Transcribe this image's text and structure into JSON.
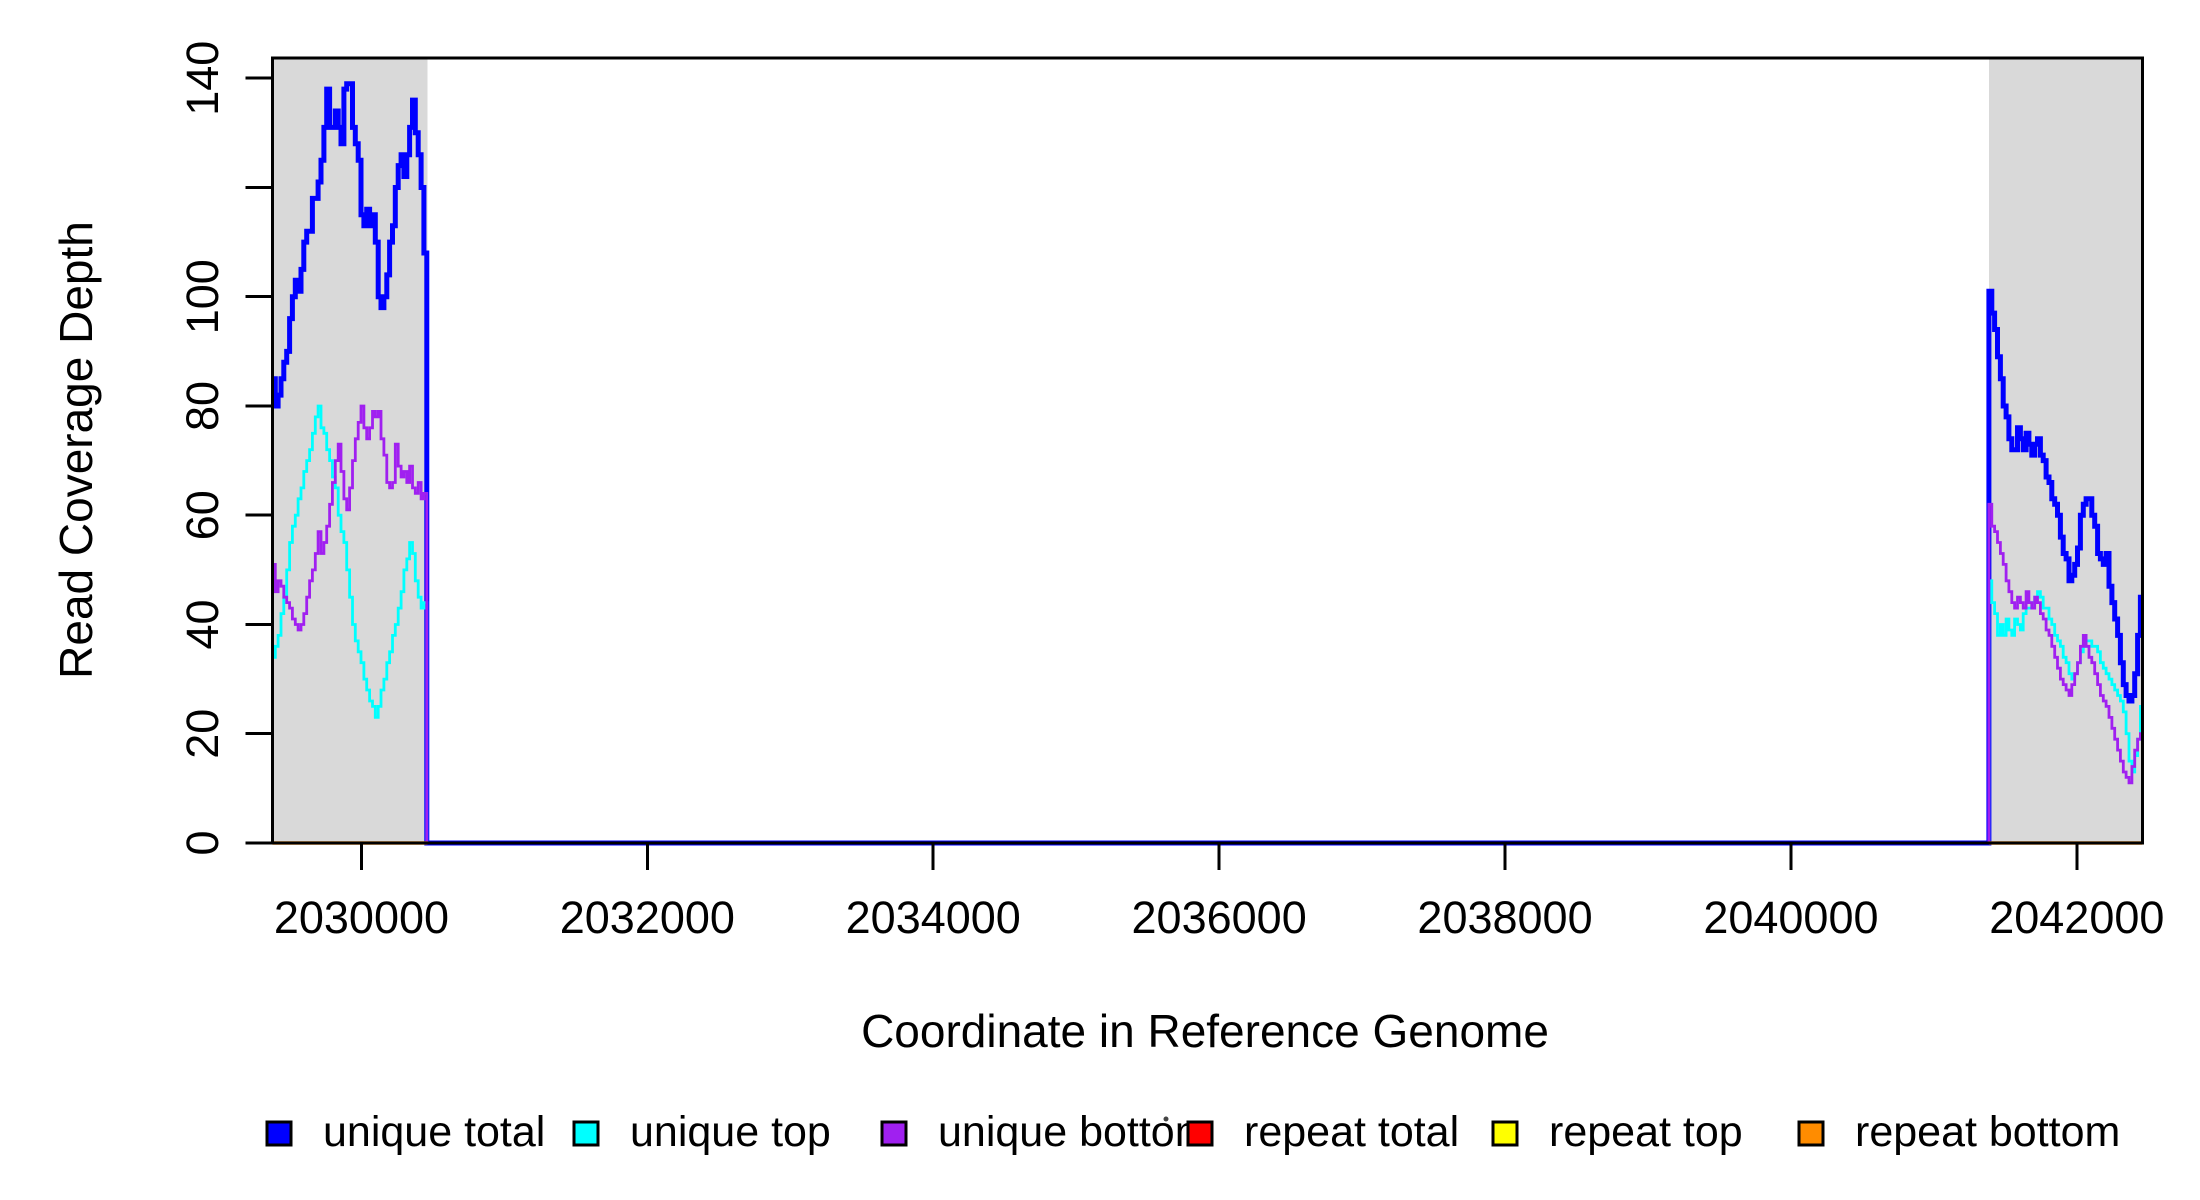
{
  "figure": {
    "background": "#FFFFFF"
  },
  "chart_data": {
    "type": "line",
    "subtype": "step-coverage-plot",
    "title": "",
    "xlabel": "Coordinate in Reference Genome",
    "ylabel": "Read Coverage Depth",
    "xlim": [
      2029377,
      2042458
    ],
    "ylim": [
      0,
      143.7
    ],
    "grid": false,
    "plot_background": "#FFFFFF",
    "axis_color": "#000000",
    "shaded_region_color": "#D9D9D9",
    "shaded_regions": [
      {
        "x0": 2029377,
        "x1": 2030462
      },
      {
        "x0": 2041385,
        "x1": 2042458
      }
    ],
    "x_ticks": [
      {
        "v": 2030000,
        "label": "2030000"
      },
      {
        "v": 2032000,
        "label": "2032000"
      },
      {
        "v": 2034000,
        "label": "2034000"
      },
      {
        "v": 2036000,
        "label": "2036000"
      },
      {
        "v": 2038000,
        "label": "2038000"
      },
      {
        "v": 2040000,
        "label": "2040000"
      },
      {
        "v": 2042000,
        "label": "2042000"
      }
    ],
    "y_ticks": [
      {
        "v": 0,
        "label": "0"
      },
      {
        "v": 20,
        "label": "20"
      },
      {
        "v": 40,
        "label": "40"
      },
      {
        "v": 60,
        "label": "60"
      },
      {
        "v": 80,
        "label": "80"
      },
      {
        "v": 100,
        "label": "100"
      },
      {
        "v": 120,
        "label": ""
      },
      {
        "v": 140,
        "label": "140"
      }
    ],
    "legend_position": "bottom",
    "series": [
      {
        "name": "unique total",
        "color": "#0000FF",
        "width": 5,
        "kind": "step",
        "segments": [
          {
            "x_start": 2029377,
            "dx": 20,
            "values": [
              85,
              80,
              82,
              85,
              88,
              90,
              96,
              100,
              103,
              101,
              105,
              110,
              112,
              112,
              118,
              118,
              121,
              125,
              131,
              138,
              131,
              131,
              134,
              131,
              128,
              138,
              139,
              139,
              131,
              128,
              125,
              115,
              113,
              116,
              113,
              115,
              110,
              100,
              98,
              100,
              104,
              110,
              113,
              120,
              124,
              126,
              122,
              126,
              131,
              136,
              130,
              126,
              120,
              108
            ]
          },
          {
            "x_start": 2030457,
            "dx": 10928,
            "values": [
              0
            ]
          },
          {
            "x_start": 2041385,
            "dx": 20,
            "values": [
              101,
              97,
              94,
              89,
              85,
              80,
              78,
              74,
              72,
              72,
              76,
              74,
              72,
              75,
              73,
              71,
              73,
              74,
              71,
              70,
              67,
              66,
              63,
              62,
              60,
              56,
              53,
              52,
              48,
              49,
              51,
              54,
              60,
              62,
              63,
              63,
              60,
              58,
              53,
              52,
              51,
              53,
              47,
              44,
              41,
              38,
              33,
              29,
              27,
              26,
              27,
              31,
              38,
              45
            ]
          }
        ],
        "x_end": 2042458
      },
      {
        "name": "unique top",
        "color": "#00FFFF",
        "width": 2.8,
        "kind": "step",
        "segments": [
          {
            "x_start": 2029377,
            "dx": 20,
            "values": [
              34,
              36,
              38,
              42,
              45,
              50,
              55,
              58,
              60,
              63,
              65,
              68,
              70,
              72,
              75,
              78,
              80,
              76,
              75,
              72,
              70,
              67,
              65,
              60,
              57,
              55,
              50,
              45,
              40,
              37,
              35,
              33,
              30,
              28,
              26,
              25,
              23,
              25,
              28,
              30,
              33,
              35,
              38,
              40,
              43,
              46,
              50,
              52,
              55,
              53,
              48,
              45,
              43,
              44
            ]
          },
          {
            "x_start": 2030457,
            "dx": 10928,
            "values": [
              0
            ]
          },
          {
            "x_start": 2041385,
            "dx": 20,
            "values": [
              48,
              44,
              42,
              38,
              40,
              38,
              41,
              39,
              38,
              41,
              40,
              39,
              42,
              43,
              43,
              44,
              45,
              46,
              45,
              43,
              43,
              41,
              40,
              38,
              37,
              36,
              34,
              33,
              31,
              30,
              31,
              33,
              35,
              36,
              37,
              37,
              36,
              36,
              35,
              33,
              32,
              31,
              30,
              29,
              28,
              27,
              26,
              24,
              20,
              15,
              13,
              16,
              19,
              25
            ]
          }
        ],
        "x_end": 2042458
      },
      {
        "name": "unique bottom",
        "color": "#A020F0",
        "width": 2.8,
        "kind": "step",
        "segments": [
          {
            "x_start": 2029377,
            "dx": 20,
            "values": [
              51,
              46,
              48,
              47,
              45,
              44,
              43,
              41,
              40,
              39,
              40,
              42,
              45,
              48,
              50,
              53,
              57,
              53,
              55,
              58,
              62,
              66,
              70,
              73,
              68,
              63,
              61,
              65,
              70,
              74,
              77,
              80,
              76,
              74,
              76,
              79,
              78,
              79,
              74,
              71,
              66,
              65,
              66,
              73,
              69,
              67,
              68,
              66,
              69,
              65,
              64,
              66,
              63,
              64
            ]
          },
          {
            "x_start": 2030457,
            "dx": 10928,
            "values": [
              0
            ]
          },
          {
            "x_start": 2041385,
            "dx": 20,
            "values": [
              62,
              58,
              57,
              55,
              53,
              51,
              48,
              46,
              44,
              43,
              45,
              44,
              43,
              46,
              44,
              43,
              45,
              44,
              42,
              41,
              39,
              38,
              36,
              34,
              32,
              30,
              29,
              28,
              27,
              29,
              31,
              33,
              36,
              38,
              36,
              34,
              33,
              31,
              29,
              27,
              26,
              25,
              23,
              21,
              19,
              17,
              15,
              13,
              12,
              11,
              14,
              17,
              19,
              20
            ]
          }
        ],
        "x_end": 2042458
      },
      {
        "name": "repeat total",
        "color": "#FF0000",
        "width": 2.8,
        "kind": "flat",
        "flat_segments": [
          {
            "x0": 2029377,
            "x1": 2030462,
            "v": 0
          },
          {
            "x0": 2041385,
            "x1": 2042458,
            "v": 0
          }
        ]
      },
      {
        "name": "repeat top",
        "color": "#FFFF00",
        "width": 2.8,
        "kind": "flat",
        "flat_segments": [
          {
            "x0": 2029377,
            "x1": 2030462,
            "v": 0
          },
          {
            "x0": 2041385,
            "x1": 2042458,
            "v": 0
          }
        ]
      },
      {
        "name": "repeat bottom",
        "color": "#FF8C00",
        "width": 3.5,
        "kind": "flat",
        "flat_segments": [
          {
            "x0": 2029377,
            "x1": 2030462,
            "v": 0
          },
          {
            "x0": 2041385,
            "x1": 2042458,
            "v": 0
          }
        ]
      }
    ]
  }
}
